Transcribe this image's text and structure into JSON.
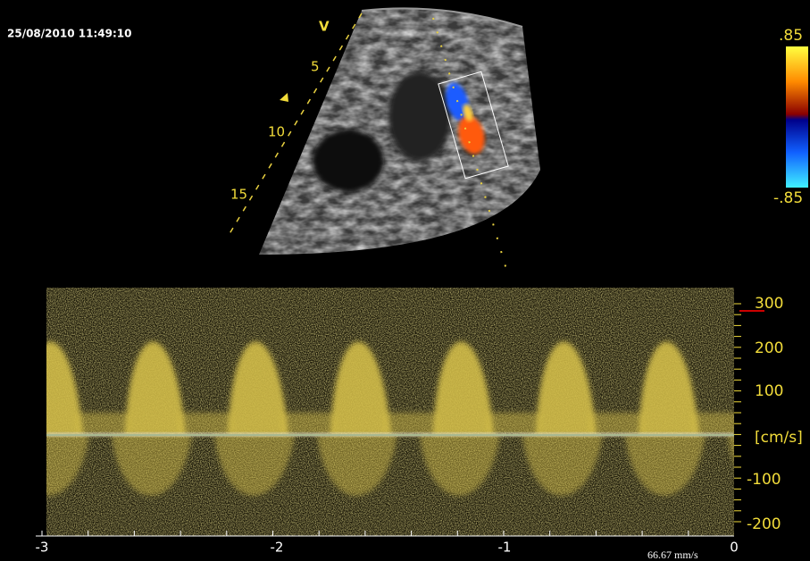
{
  "timestamp": "25/08/2010 11:49:10",
  "image": {
    "orientation_marker": "V",
    "depth_labels": [
      "5",
      "10",
      "15"
    ]
  },
  "color_scale": {
    "max": ".85",
    "min": "-.85"
  },
  "spectral_doppler": {
    "velocity_labels": [
      "300",
      "200",
      "100",
      "[cm/s]",
      "-100",
      "-200"
    ],
    "time_labels": [
      "-3",
      "-2",
      "-1",
      "0"
    ],
    "sweep_speed": "66.67 mm/s"
  }
}
